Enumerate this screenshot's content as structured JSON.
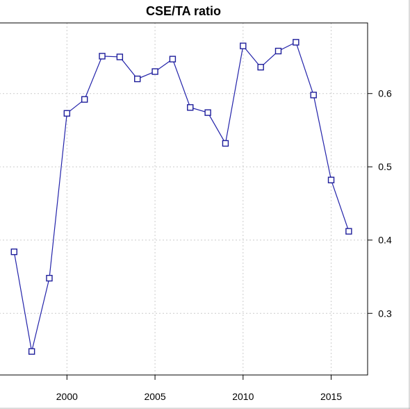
{
  "chart_data": {
    "type": "line",
    "title": "CSE/TA ratio",
    "xlabel": "",
    "ylabel": "",
    "x": [
      1997,
      1998,
      1999,
      2000,
      2001,
      2002,
      2003,
      2004,
      2005,
      2006,
      2007,
      2008,
      2009,
      2010,
      2011,
      2012,
      2013,
      2014,
      2015,
      2016
    ],
    "series": [
      {
        "name": "",
        "values": [
          0.384,
          0.248,
          0.348,
          0.573,
          0.592,
          0.651,
          0.65,
          0.62,
          0.63,
          0.647,
          0.581,
          0.574,
          0.532,
          0.665,
          0.636,
          0.658,
          0.67,
          0.598,
          0.482,
          0.412
        ]
      }
    ],
    "x_ticks": [
      2000,
      2005,
      2010,
      2015
    ],
    "y_ticks": [
      0.3,
      0.4,
      0.5,
      0.6
    ],
    "x_tick_labels": [
      "2000",
      "2005",
      "2010",
      "2015"
    ],
    "y_tick_labels": [
      "0.3",
      "0.4",
      "0.5",
      "0.6"
    ],
    "xlim": [
      1996.16,
      2017.07
    ],
    "ylim": [
      0.2159,
      0.6964
    ],
    "grid": true,
    "legend": "none",
    "colors": {
      "series": "#2323aa",
      "grid": "#cccccc"
    },
    "marker": "open-square"
  }
}
